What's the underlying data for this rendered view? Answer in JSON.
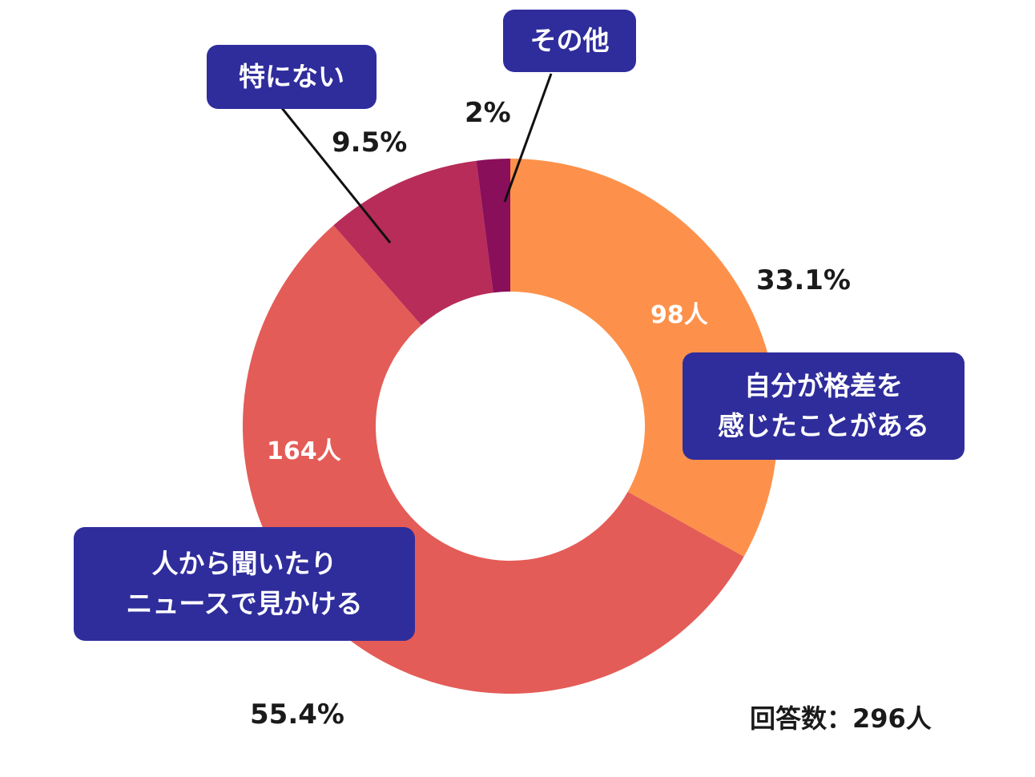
{
  "chart_data": {
    "type": "pie",
    "style": "donut",
    "total_label": "回答数：296人",
    "slices": [
      {
        "label_line1": "自分が格差を",
        "label_line2": "感じたことがある",
        "percent_label": "33.1%",
        "count_label": "98人",
        "value": 98,
        "color": "#fd914b"
      },
      {
        "label_line1": "人から聞いたり",
        "label_line2": "ニュースで見かける",
        "percent_label": "55.4%",
        "count_label": "164人",
        "value": 164,
        "color": "#e45c57"
      },
      {
        "label_line1": "特にない",
        "label_line2": "",
        "percent_label": "9.5%",
        "count_label": "",
        "value": 28,
        "color": "#b72c58"
      },
      {
        "label_line1": "その他",
        "label_line2": "",
        "percent_label": "2%",
        "count_label": "",
        "value": 6,
        "color": "#8a0f5a"
      }
    ]
  }
}
